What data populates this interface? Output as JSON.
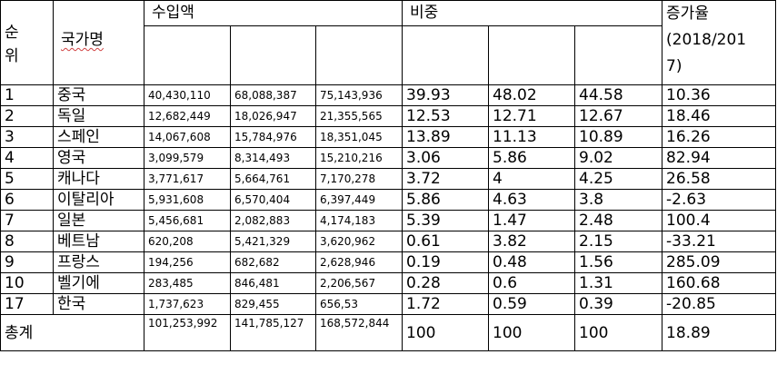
{
  "header": {
    "rank_label": "순\n위",
    "rank_line1": "순",
    "rank_line2": "위",
    "country_label": "국가명",
    "import_label": "수입액",
    "share_label": "비중",
    "growth_line1": "증가율",
    "growth_line2": "(2018/201",
    "growth_line3": "7)"
  },
  "rows": [
    {
      "rank": "1",
      "country": "중국",
      "i1": "40,430,110",
      "i2": "68,088,387",
      "i3": "75,143,936",
      "s1": "39.93",
      "s2": "48.02",
      "s3": "44.58",
      "growth": "10.36"
    },
    {
      "rank": "2",
      "country": "독일",
      "i1": "12,682,449",
      "i2": "18,026,947",
      "i3": "21,355,565",
      "s1": "12.53",
      "s2": "12.71",
      "s3": "12.67",
      "growth": "18.46"
    },
    {
      "rank": "3",
      "country": "스페인",
      "i1": "14,067,608",
      "i2": "15,784,976",
      "i3": "18,351,045",
      "s1": "13.89",
      "s2": "11.13",
      "s3": "10.89",
      "growth": "16.26"
    },
    {
      "rank": "4",
      "country": "영국",
      "i1": "3,099,579",
      "i2": "8,314,493",
      "i3": "15,210,216",
      "s1": "3.06",
      "s2": "5.86",
      "s3": "9.02",
      "growth": "82.94"
    },
    {
      "rank": "5",
      "country": "캐나다",
      "i1": "3,771,617",
      "i2": "5,664,761",
      "i3": "7,170,278",
      "s1": "3.72",
      "s2": "4",
      "s3": "4.25",
      "growth": "26.58"
    },
    {
      "rank": "6",
      "country": "이탈리아",
      "i1": "5,931,608",
      "i2": "6,570,404",
      "i3": "6,397,449",
      "s1": "5.86",
      "s2": "4.63",
      "s3": "3.8",
      "growth": "-2.63"
    },
    {
      "rank": "7",
      "country": "일본",
      "i1": "5,456,681",
      "i2": "2,082,883",
      "i3": "4,174,183",
      "s1": "5.39",
      "s2": "1.47",
      "s3": "2.48",
      "growth": "100.4"
    },
    {
      "rank": "8",
      "country": "베트남",
      "i1": "620,208",
      "i2": "5,421,329",
      "i3": "3,620,962",
      "s1": "0.61",
      "s2": "3.82",
      "s3": "2.15",
      "growth": "-33.21"
    },
    {
      "rank": "9",
      "country": "프랑스",
      "i1": "194,256",
      "i2": "682,682",
      "i3": "2,628,946",
      "s1": "0.19",
      "s2": "0.48",
      "s3": "1.56",
      "growth": "285.09"
    },
    {
      "rank": "10",
      "country": "벨기에",
      "i1": "283,485",
      "i2": "846,481",
      "i3": "2,206,567",
      "s1": "0.28",
      "s2": "0.6",
      "s3": "1.31",
      "growth": "160.68"
    },
    {
      "rank": "17",
      "country": "한국",
      "i1": "1,737,623",
      "i2": "829,455",
      "i3": "656,53",
      "s1": "1.72",
      "s2": "0.59",
      "s3": "0.39",
      "growth": "-20.85"
    }
  ],
  "total": {
    "label": "총계",
    "i1": "101,253,992",
    "i2": "141,785,127",
    "i3": "168,572,844",
    "s1": "100",
    "s2": "100",
    "s3": "100",
    "growth": "18.89"
  }
}
